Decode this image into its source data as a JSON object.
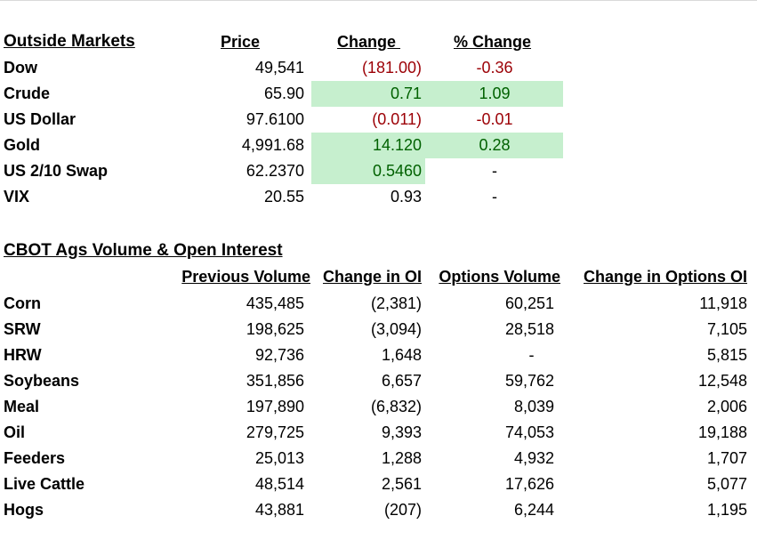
{
  "outside": {
    "title": "Outside Markets",
    "headers": {
      "price": "Price",
      "change": "Change ",
      "pct": "% Change"
    },
    "rows": [
      {
        "name": "Dow",
        "price": "49,541",
        "change": "(181.00)",
        "pct": "-0.36",
        "change_dir": "neg",
        "pct_dir": "neg",
        "hl_change": false,
        "hl_pct": false
      },
      {
        "name": "Crude",
        "price": "65.90",
        "change": "0.71",
        "pct": "1.09",
        "change_dir": "pos",
        "pct_dir": "pos",
        "hl_change": true,
        "hl_pct": true
      },
      {
        "name": "US Dollar",
        "price": "97.6100",
        "change": "(0.011)",
        "pct": "-0.01",
        "change_dir": "neg",
        "pct_dir": "neg",
        "hl_change": false,
        "hl_pct": false
      },
      {
        "name": "Gold",
        "price": "4,991.68",
        "change": "14.120",
        "pct": "0.28",
        "change_dir": "pos",
        "pct_dir": "pos",
        "hl_change": true,
        "hl_pct": true
      },
      {
        "name": "US 2/10 Swap",
        "price": "62.2370",
        "change": "0.5460",
        "pct": "-",
        "change_dir": "pos",
        "pct_dir": "none",
        "hl_change": true,
        "hl_pct": false
      },
      {
        "name": "VIX",
        "price": "20.55",
        "change": "0.93",
        "pct": "-",
        "change_dir": "none",
        "pct_dir": "none",
        "hl_change": false,
        "hl_pct": false
      }
    ]
  },
  "ags": {
    "title": "CBOT Ags Volume & Open Interest",
    "headers": {
      "prev_volume": "Previous Volume",
      "change_oi": "Change in OI",
      "opt_volume": "Options Volume",
      "change_opt_oi": "Change in Options OI"
    },
    "rows": [
      {
        "name": "Corn",
        "prev_volume": "435,485",
        "change_oi": "(2,381)",
        "opt_volume": "60,251",
        "change_opt_oi": "11,918"
      },
      {
        "name": "SRW",
        "prev_volume": "198,625",
        "change_oi": "(3,094)",
        "opt_volume": "28,518",
        "change_opt_oi": "7,105"
      },
      {
        "name": "HRW",
        "prev_volume": "92,736",
        "change_oi": "1,648",
        "opt_volume": "-",
        "change_opt_oi": "5,815"
      },
      {
        "name": "Soybeans",
        "prev_volume": "351,856",
        "change_oi": "6,657",
        "opt_volume": "59,762",
        "change_opt_oi": "12,548"
      },
      {
        "name": "Meal",
        "prev_volume": "197,890",
        "change_oi": "(6,832)",
        "opt_volume": "8,039",
        "change_opt_oi": "2,006"
      },
      {
        "name": "Oil",
        "prev_volume": "279,725",
        "change_oi": "9,393",
        "opt_volume": "74,053",
        "change_opt_oi": "19,188"
      },
      {
        "name": "Feeders",
        "prev_volume": "25,013",
        "change_oi": "1,288",
        "opt_volume": "4,932",
        "change_opt_oi": "1,707"
      },
      {
        "name": "Live Cattle",
        "prev_volume": "48,514",
        "change_oi": "2,561",
        "opt_volume": "17,626",
        "change_opt_oi": "5,077"
      },
      {
        "name": "Hogs",
        "prev_volume": "43,881",
        "change_oi": "(207)",
        "opt_volume": "6,244",
        "change_opt_oi": "1,195"
      }
    ]
  }
}
